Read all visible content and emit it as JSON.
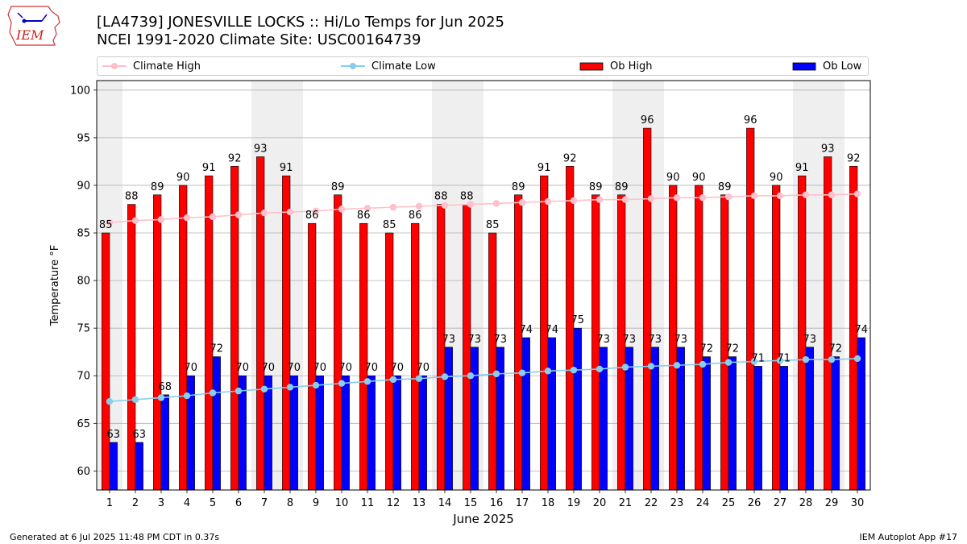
{
  "title_line1": "[LA4739] JONESVILLE LOCKS :: Hi/Lo Temps for Jun 2025",
  "title_line2": "NCEI 1991-2020 Climate Site: USC00164739",
  "logo_text": "IEM",
  "footer_left": "Generated at 6 Jul 2025 11:48 PM CDT in 0.37s",
  "footer_right": "IEM Autoplot App #17",
  "colors": {
    "ob_high": "#ff0000",
    "ob_low": "#0000ff",
    "climate_high": "#ffc0cb",
    "climate_low": "#87ceeb",
    "weekend_band": "#efefef"
  },
  "chart_data": {
    "type": "bar",
    "xlabel": "June 2025",
    "ylabel": "Temperature °F",
    "ylim": [
      58,
      101
    ],
    "yticks": [
      60,
      65,
      70,
      75,
      80,
      85,
      90,
      95,
      100
    ],
    "grid": true,
    "legend_position": "top",
    "x": [
      1,
      2,
      3,
      4,
      5,
      6,
      7,
      8,
      9,
      10,
      11,
      12,
      13,
      14,
      15,
      16,
      17,
      18,
      19,
      20,
      21,
      22,
      23,
      24,
      25,
      26,
      27,
      28,
      29,
      30
    ],
    "weekend_days": [
      1,
      7,
      8,
      14,
      15,
      21,
      22,
      28,
      29
    ],
    "series": [
      {
        "name": "Ob High",
        "kind": "bar",
        "values": [
          85,
          88,
          89,
          90,
          91,
          92,
          93,
          91,
          86,
          89,
          86,
          85,
          86,
          88,
          88,
          85,
          89,
          91,
          92,
          89,
          89,
          96,
          90,
          90,
          89,
          96,
          90,
          91,
          93,
          92
        ]
      },
      {
        "name": "Ob Low",
        "kind": "bar",
        "values": [
          63,
          63,
          68,
          70,
          72,
          70,
          70,
          70,
          70,
          70,
          70,
          70,
          70,
          73,
          73,
          73,
          74,
          74,
          75,
          73,
          73,
          73,
          73,
          72,
          72,
          71,
          71,
          73,
          72,
          74
        ]
      },
      {
        "name": "Climate High",
        "kind": "line",
        "values": [
          86.1,
          86.3,
          86.4,
          86.6,
          86.7,
          86.9,
          87.1,
          87.2,
          87.3,
          87.5,
          87.6,
          87.7,
          87.8,
          87.9,
          88.0,
          88.1,
          88.2,
          88.3,
          88.4,
          88.5,
          88.5,
          88.6,
          88.7,
          88.7,
          88.8,
          88.9,
          88.9,
          89.0,
          89.0,
          89.1
        ]
      },
      {
        "name": "Climate Low",
        "kind": "line",
        "values": [
          67.3,
          67.5,
          67.7,
          67.9,
          68.2,
          68.4,
          68.6,
          68.8,
          69.0,
          69.2,
          69.4,
          69.6,
          69.7,
          69.9,
          70.0,
          70.2,
          70.3,
          70.5,
          70.6,
          70.7,
          70.9,
          71.0,
          71.1,
          71.2,
          71.4,
          71.5,
          71.6,
          71.7,
          71.7,
          71.8
        ]
      }
    ]
  }
}
